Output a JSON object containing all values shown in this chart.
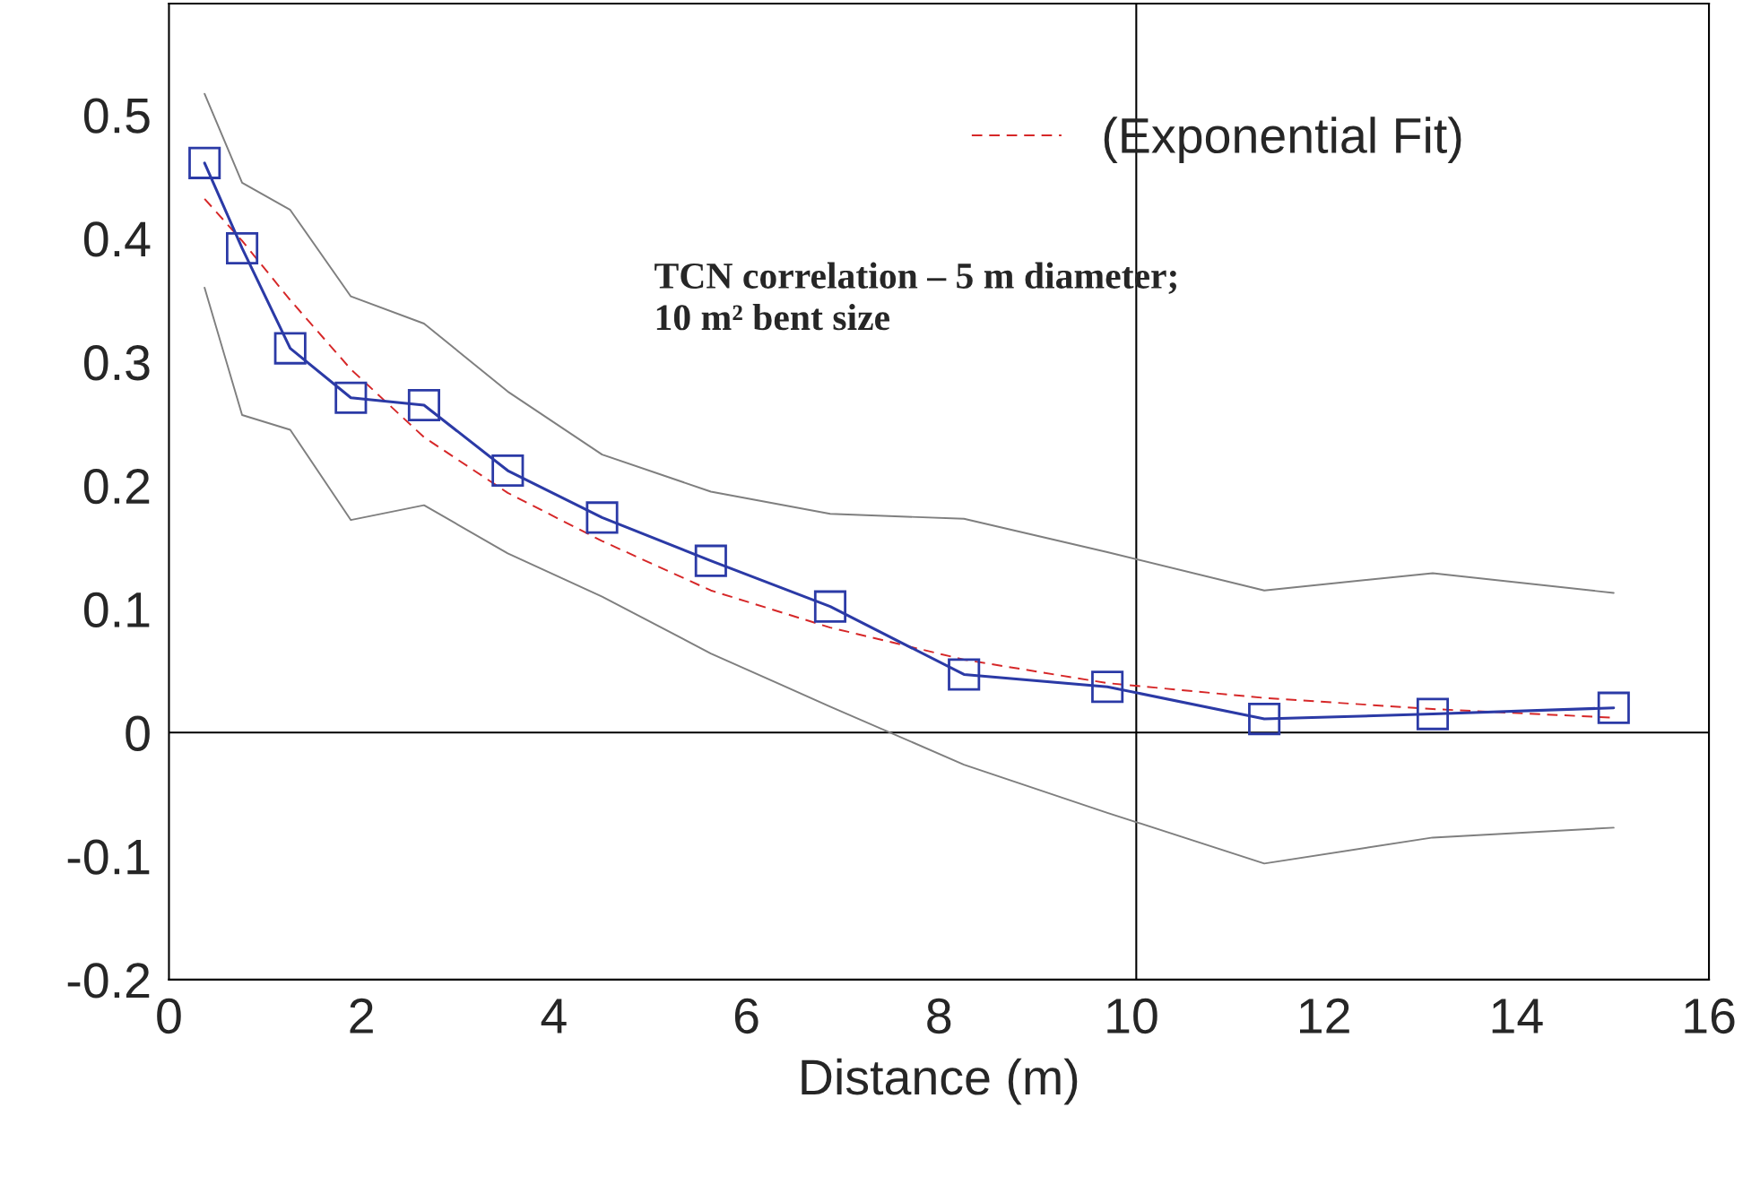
{
  "chart_data": {
    "type": "line",
    "xlabel": "Distance (m)",
    "xlim": [
      0,
      16
    ],
    "xticks": [
      0,
      2,
      4,
      6,
      8,
      10,
      12,
      14,
      16
    ],
    "ylim": [
      -0.2,
      0.59
    ],
    "yticks": [
      -0.2,
      -0.1,
      0,
      0.1,
      0.2,
      0.3,
      0.4,
      0.5
    ],
    "grid": false,
    "legend": "top right",
    "line_style": "solid",
    "annotations": [
      "TCN correlation – 5 m diameter;\n10 m² bent size"
    ],
    "ref_lines": [
      {
        "axis": "y",
        "value": 0,
        "color": "#000000"
      },
      {
        "axis": "x",
        "value": 10.05,
        "color": "#000000"
      }
    ],
    "series": [
      {
        "color": "#7f7f7f",
        "marker": "none",
        "x": [
          0.37,
          0.76,
          1.26,
          1.89,
          2.65,
          3.52,
          4.5,
          5.63,
          6.87,
          8.26,
          9.75,
          11.38,
          13.13,
          15.01
        ],
        "values": [
          0.517,
          0.445,
          0.423,
          0.353,
          0.331,
          0.276,
          0.225,
          0.195,
          0.177,
          0.173,
          0.146,
          0.115,
          0.129,
          0.113
        ]
      },
      {
        "color": "#7f7f7f",
        "marker": "none",
        "x": [
          0.37,
          0.76,
          1.26,
          1.89,
          2.65,
          3.52,
          4.5,
          5.63,
          6.87,
          8.26,
          9.75,
          11.38,
          13.13,
          15.01
        ],
        "values": [
          0.36,
          0.257,
          0.245,
          0.172,
          0.184,
          0.145,
          0.11,
          0.064,
          0.021,
          -0.026,
          -0.065,
          -0.106,
          -0.085,
          -0.077
        ]
      },
      {
        "name": "(Exponential Fit)",
        "color": "#d62728",
        "marker": "none",
        "line_style": "dashed",
        "x": [
          0.37,
          0.76,
          1.26,
          1.89,
          2.65,
          3.52,
          4.5,
          5.63,
          6.87,
          8.26,
          9.75,
          11.38,
          13.13,
          15.01
        ],
        "values": [
          0.432,
          0.398,
          0.35,
          0.294,
          0.239,
          0.194,
          0.155,
          0.115,
          0.085,
          0.059,
          0.04,
          0.028,
          0.019,
          0.012
        ]
      },
      {
        "color": "#2b3aa6",
        "marker": "square",
        "x": [
          0.37,
          0.76,
          1.26,
          1.89,
          2.65,
          3.52,
          4.5,
          5.63,
          6.87,
          8.26,
          9.75,
          11.38,
          13.13,
          15.01
        ],
        "values": [
          0.461,
          0.392,
          0.311,
          0.271,
          0.265,
          0.212,
          0.174,
          0.139,
          0.102,
          0.047,
          0.037,
          0.011,
          0.015,
          0.02
        ]
      }
    ]
  }
}
